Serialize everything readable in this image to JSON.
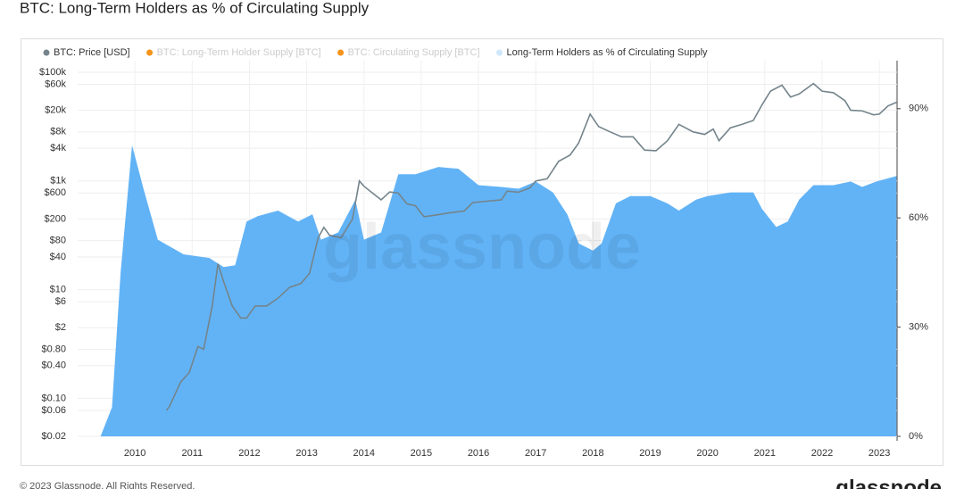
{
  "chart_data": {
    "type": "line_area",
    "title": "BTC: Long-Term Holders as % of Circulating Supply",
    "watermark": "glassnode",
    "footer": "© 2023 Glassnode. All Rights Reserved.",
    "logo": "glassnode",
    "xlim": [
      2009,
      2023.31
    ],
    "xticks": [
      2010,
      2011,
      2012,
      2013,
      2014,
      2015,
      2016,
      2017,
      2018,
      2019,
      2020,
      2021,
      2022,
      2023
    ],
    "ylim": [
      0.02,
      100000
    ],
    "log_scale": true,
    "yticks": [
      {
        "value": 100000,
        "label": "$100k"
      },
      {
        "value": 60000,
        "label": "$60k"
      },
      {
        "value": 20000,
        "label": "$20k"
      },
      {
        "value": 8000,
        "label": "$8k"
      },
      {
        "value": 4000,
        "label": "$4k"
      },
      {
        "value": 1000,
        "label": "$1k"
      },
      {
        "value": 600,
        "label": "$600"
      },
      {
        "value": 200,
        "label": "$200"
      },
      {
        "value": 80,
        "label": "$80"
      },
      {
        "value": 40,
        "label": "$40"
      },
      {
        "value": 10,
        "label": "$10"
      },
      {
        "value": 6,
        "label": "$6"
      },
      {
        "value": 2,
        "label": "$2"
      },
      {
        "value": 0.8,
        "label": "$0.80"
      },
      {
        "value": 0.4,
        "label": "$0.40"
      },
      {
        "value": 0.1,
        "label": "$0.10"
      },
      {
        "value": 0.06,
        "label": "$0.06"
      },
      {
        "value": 0.02,
        "label": "$0.02"
      }
    ],
    "y2lim": [
      0,
      100
    ],
    "y2ticks": [
      {
        "value": 0,
        "label": "0%"
      },
      {
        "value": 30,
        "label": "30%"
      },
      {
        "value": 60,
        "label": "60%"
      },
      {
        "value": 90,
        "label": "90%"
      }
    ],
    "grid": true,
    "series": [
      {
        "name": "BTC: Price [USD]",
        "color": "#74848b",
        "visible": true,
        "x": [
          2010.55,
          2010.6,
          2010.8,
          2010.95,
          2011.1,
          2011.2,
          2011.35,
          2011.45,
          2011.55,
          2011.7,
          2011.85,
          2011.95,
          2012.1,
          2012.3,
          2012.5,
          2012.7,
          2012.9,
          2013.05,
          2013.2,
          2013.3,
          2013.4,
          2013.6,
          2013.8,
          2013.92,
          2014.0,
          2014.15,
          2014.3,
          2014.45,
          2014.6,
          2014.75,
          2014.9,
          2015.05,
          2015.3,
          2015.5,
          2015.75,
          2015.9,
          2016.1,
          2016.4,
          2016.5,
          2016.7,
          2016.9,
          2017.0,
          2017.2,
          2017.4,
          2017.6,
          2017.75,
          2017.95,
          2018.1,
          2018.3,
          2018.5,
          2018.7,
          2018.9,
          2019.1,
          2019.3,
          2019.5,
          2019.75,
          2019.95,
          2020.1,
          2020.2,
          2020.4,
          2020.6,
          2020.8,
          2020.95,
          2021.1,
          2021.3,
          2021.45,
          2021.6,
          2021.85,
          2022.0,
          2022.2,
          2022.4,
          2022.5,
          2022.7,
          2022.9,
          2023.0,
          2023.15,
          2023.3
        ],
        "values": [
          0.06,
          0.07,
          0.2,
          0.3,
          0.9,
          0.8,
          5,
          30,
          14,
          5,
          3,
          3,
          5,
          5,
          7,
          11,
          13,
          20,
          90,
          140,
          100,
          90,
          200,
          1000,
          800,
          600,
          450,
          630,
          600,
          380,
          350,
          220,
          240,
          260,
          280,
          400,
          420,
          450,
          650,
          620,
          750,
          1000,
          1100,
          2300,
          3000,
          5000,
          17000,
          10000,
          8000,
          6500,
          6500,
          3700,
          3600,
          5500,
          11000,
          8000,
          7200,
          9000,
          5500,
          9500,
          11000,
          13000,
          25000,
          45000,
          58000,
          35000,
          40000,
          62000,
          45000,
          42000,
          30000,
          20000,
          19500,
          16500,
          17000,
          24000,
          28000
        ]
      },
      {
        "name": "BTC: Long-Term Holder Supply [BTC]",
        "color": "#f7931a",
        "visible": false
      },
      {
        "name": "BTC: Circulating Supply [BTC]",
        "color": "#f7931a",
        "visible": false
      },
      {
        "name": "Long-Term Holders as % of Circulating Supply",
        "color": "#62b3f6",
        "legend_color": "#cfe7fb",
        "axis": "y2",
        "visible": true,
        "x": [
          2009.4,
          2009.6,
          2009.75,
          2009.95,
          2010.15,
          2010.4,
          2010.85,
          2011.3,
          2011.55,
          2011.75,
          2011.95,
          2012.15,
          2012.5,
          2012.85,
          2013.1,
          2013.25,
          2013.55,
          2013.85,
          2014.0,
          2014.3,
          2014.6,
          2014.9,
          2015.3,
          2015.65,
          2016.0,
          2016.4,
          2016.7,
          2017.0,
          2017.3,
          2017.55,
          2017.75,
          2018.0,
          2018.15,
          2018.4,
          2018.65,
          2019.0,
          2019.3,
          2019.5,
          2019.8,
          2020.0,
          2020.4,
          2020.8,
          2020.95,
          2021.2,
          2021.4,
          2021.6,
          2021.85,
          2022.2,
          2022.5,
          2022.7,
          2022.95,
          2023.3
        ],
        "values": [
          0,
          8,
          45,
          80,
          68,
          54,
          50,
          49,
          46.5,
          47,
          59,
          60.5,
          62,
          59,
          61,
          54,
          56,
          65,
          54,
          56,
          72,
          72,
          74,
          73.5,
          69,
          68.5,
          68,
          70,
          67,
          61,
          53,
          51,
          53,
          64,
          66,
          66,
          64,
          62,
          65,
          66,
          67,
          67,
          62.5,
          57.5,
          59,
          65,
          69,
          69,
          70,
          68.5,
          70,
          71.5
        ]
      }
    ]
  }
}
